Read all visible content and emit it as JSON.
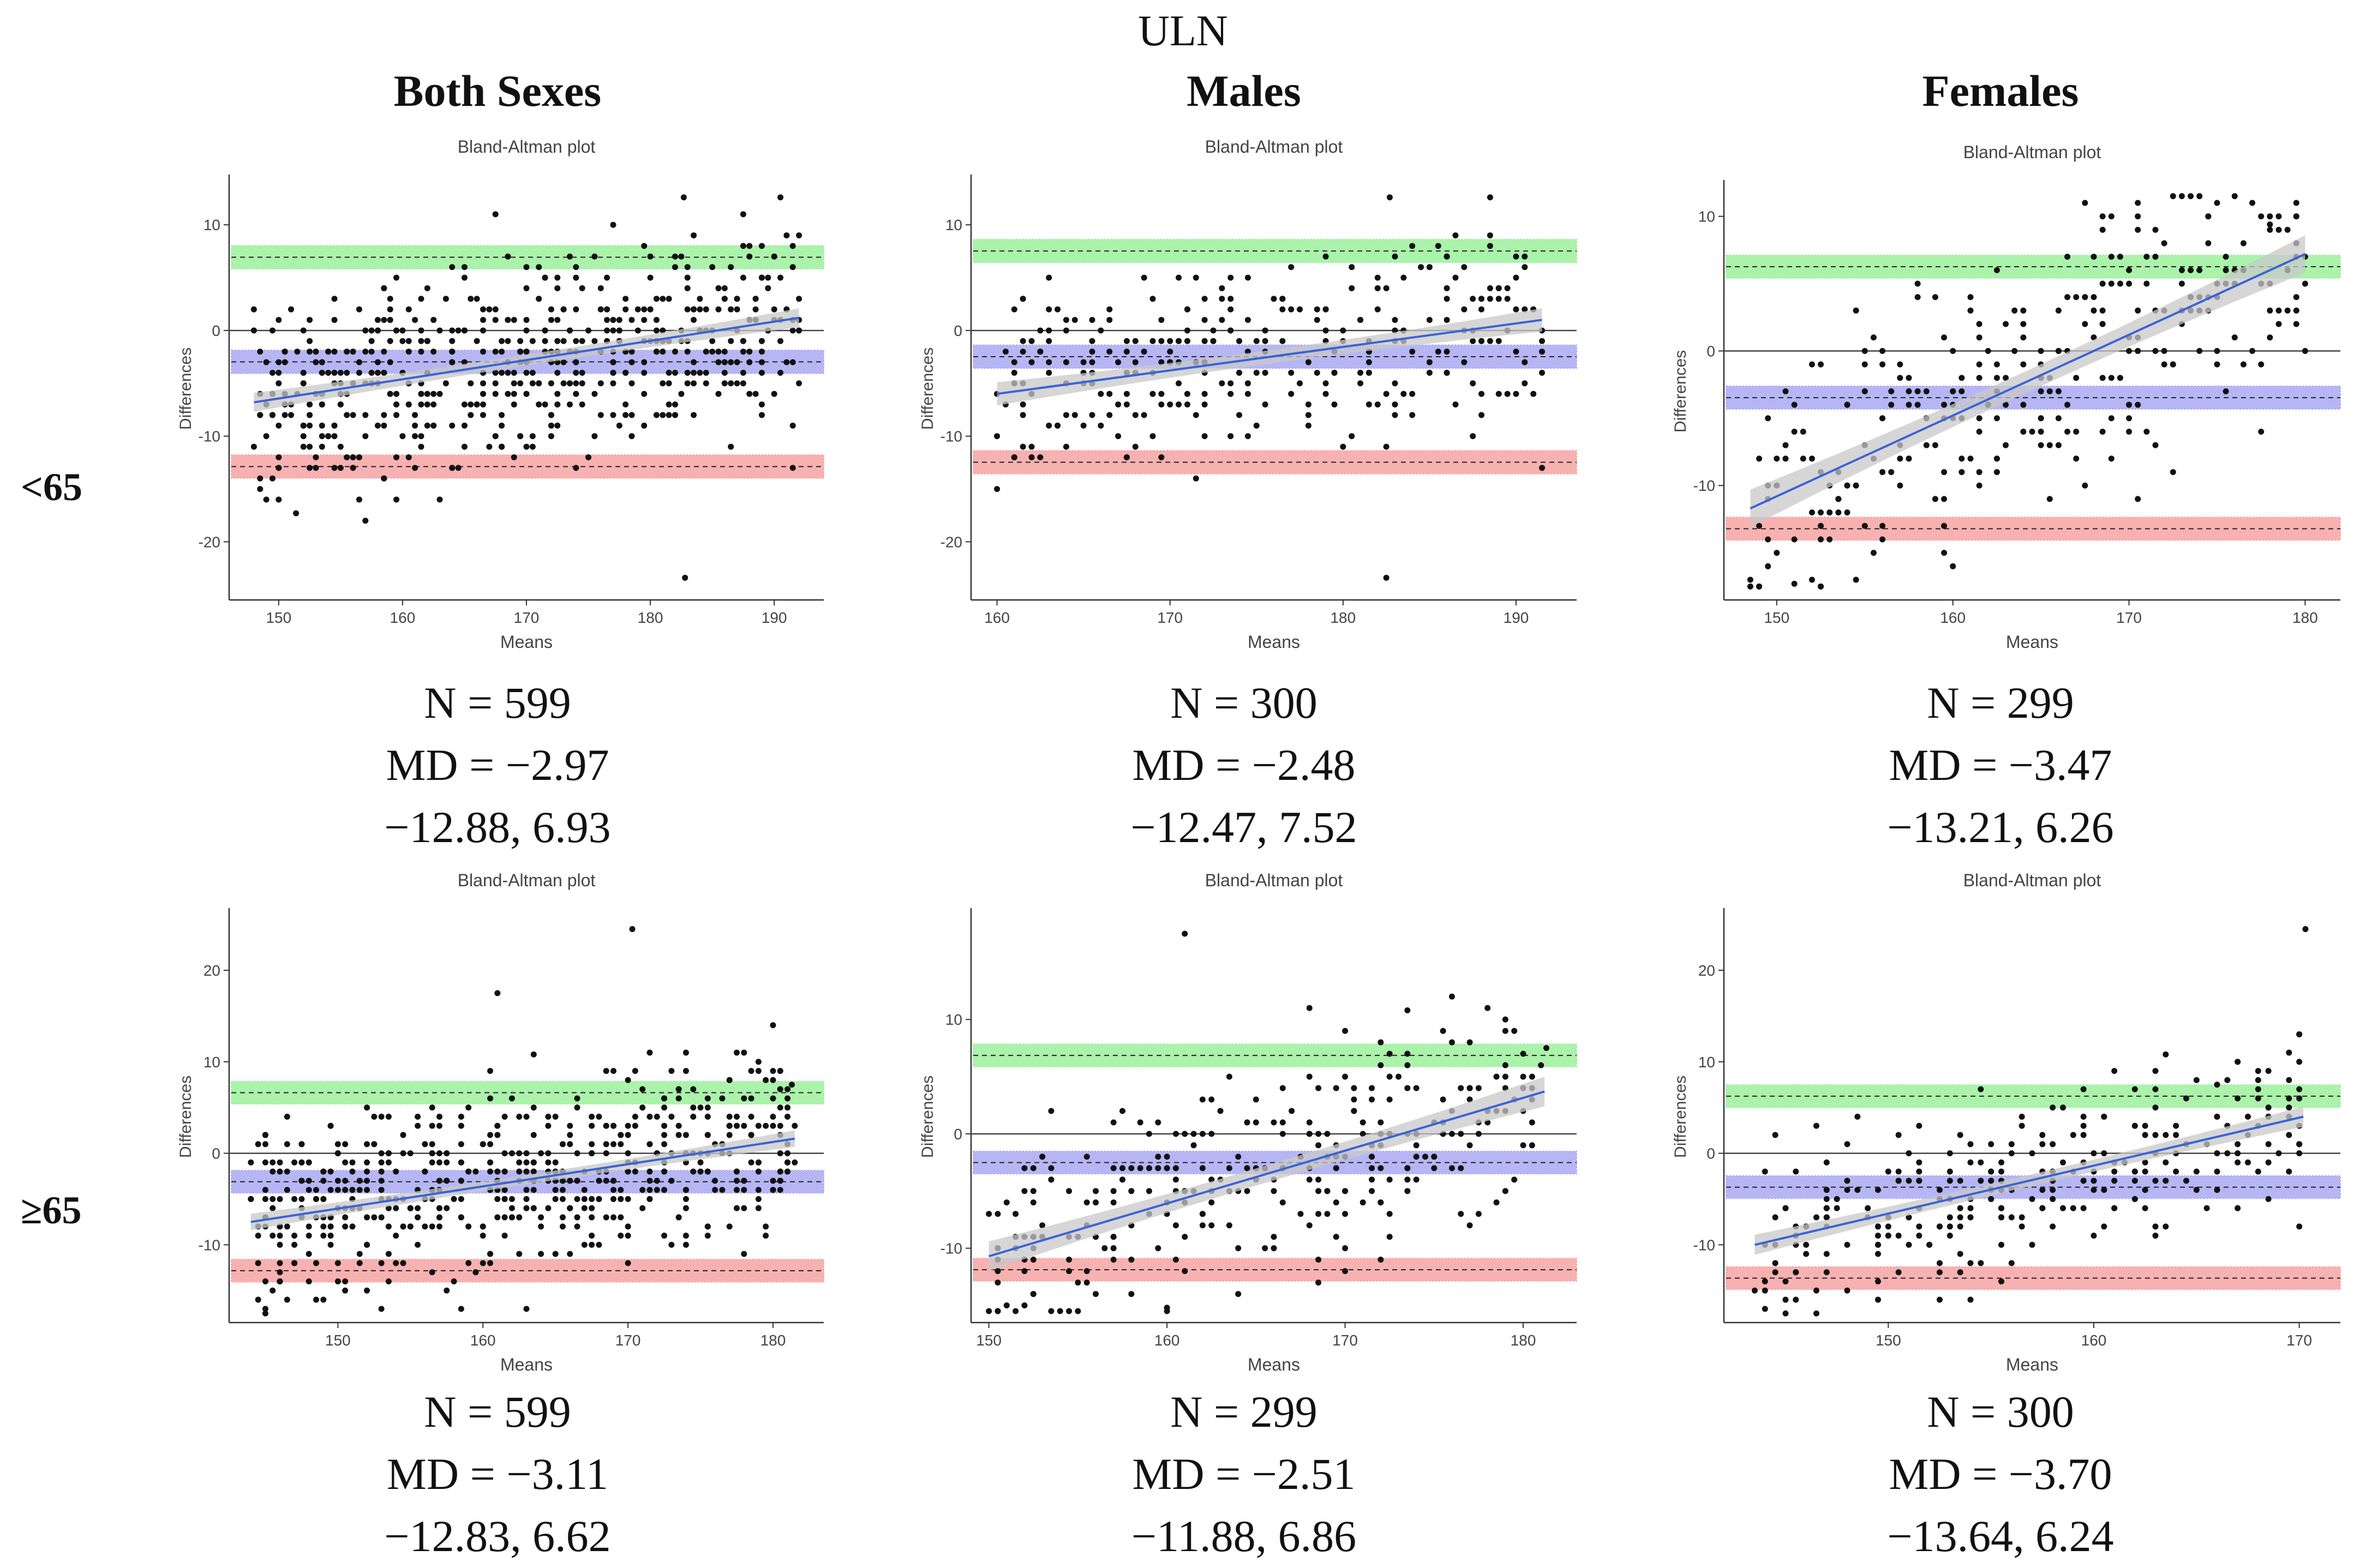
{
  "figure": {
    "title": "ULN",
    "column_headers": [
      "Both Sexes",
      "Males",
      "Females"
    ],
    "row_labels": [
      "<65",
      "≥65"
    ]
  },
  "colors": {
    "upper_loa_band": "#9cf09c",
    "mean_band": "#a9a9f2",
    "lower_loa_band": "#f6a3a3",
    "regression_line": "#3b63d8",
    "confidence_band": "#c8c8c8",
    "points": "#111111"
  },
  "stats": [
    {
      "n": "N = 599",
      "md": "MD = −2.97",
      "loa": "−12.88, 6.93"
    },
    {
      "n": "N = 300",
      "md": "MD = −2.48",
      "loa": "−12.47, 7.52"
    },
    {
      "n": "N = 299",
      "md": "MD = −3.47",
      "loa": "−13.21, 6.26"
    },
    {
      "n": "N = 599",
      "md": "MD = −3.11",
      "loa": "−12.83, 6.62"
    },
    {
      "n": "N = 299",
      "md": "MD = −2.51",
      "loa": "−11.88, 6.86"
    },
    {
      "n": "N = 300",
      "md": "MD = −3.70",
      "loa": "−13.64, 6.24"
    }
  ],
  "chart_data": [
    {
      "type": "scatter",
      "title": "Bland-Altman plot",
      "xlabel": "Means",
      "ylabel": "Differences",
      "group": "<65",
      "sex": "Both Sexes",
      "n": 599,
      "xlim": [
        146,
        194
      ],
      "ylim": [
        -25.5,
        14.5
      ],
      "xticks": [
        150,
        160,
        170,
        180,
        190
      ],
      "yticks": [
        -20,
        -10,
        0,
        10
      ],
      "mean_diff": -2.97,
      "loa_lower": -12.88,
      "loa_upper": 6.93,
      "x_range": [
        148,
        192
      ],
      "regression": {
        "x": [
          148,
          192
        ],
        "y": [
          -6.8,
          1.2
        ]
      },
      "ci_halfwidth": 0.9,
      "n_points": 599,
      "sample_points": [
        [
          182.8,
          -23.4
        ],
        [
          151.4,
          -17.3
        ],
        [
          190.5,
          12.6
        ],
        [
          167.5,
          11.0
        ],
        [
          182.7,
          12.6
        ],
        [
          191.5,
          -13.0
        ]
      ]
    },
    {
      "type": "scatter",
      "title": "Bland-Altman plot",
      "xlabel": "Means",
      "ylabel": "Differences",
      "group": "<65",
      "sex": "Males",
      "n": 300,
      "xlim": [
        158.5,
        193.5
      ],
      "ylim": [
        -25.5,
        14.5
      ],
      "xticks": [
        160,
        170,
        180,
        190
      ],
      "yticks": [
        -20,
        -10,
        0,
        10
      ],
      "mean_diff": -2.48,
      "loa_lower": -12.47,
      "loa_upper": 7.52,
      "x_range": [
        160,
        191.5
      ],
      "regression": {
        "x": [
          160,
          191.5
        ],
        "y": [
          -6.0,
          1.0
        ]
      },
      "ci_halfwidth": 1.1,
      "n_points": 300,
      "sample_points": [
        [
          182.5,
          -23.4
        ],
        [
          182.7,
          12.6
        ],
        [
          188.5,
          12.6
        ],
        [
          191.5,
          -13.0
        ]
      ]
    },
    {
      "type": "scatter",
      "title": "Bland-Altman plot",
      "xlabel": "Means",
      "ylabel": "Differences",
      "group": "<65",
      "sex": "Females",
      "n": 299,
      "xlim": [
        147,
        182
      ],
      "ylim": [
        -18.5,
        12.5
      ],
      "xticks": [
        150,
        160,
        170,
        180
      ],
      "yticks": [
        -10,
        0,
        10
      ],
      "mean_diff": -3.47,
      "loa_lower": -13.21,
      "loa_upper": 6.26,
      "x_range": [
        148.5,
        180
      ],
      "regression": {
        "x": [
          148.5,
          180
        ],
        "y": [
          -11.7,
          7.2
        ]
      },
      "ci_halfwidth": 1.4,
      "n_points": 299,
      "sample_points": [
        [
          151.0,
          -17.3
        ],
        [
          167.5,
          11.0
        ],
        [
          178.0,
          9.4
        ],
        [
          180.0,
          0.0
        ]
      ]
    },
    {
      "type": "scatter",
      "title": "Bland-Altman plot",
      "xlabel": "Means",
      "ylabel": "Differences",
      "group": "≥65",
      "sex": "Both Sexes",
      "n": 599,
      "xlim": [
        142.5,
        183.5
      ],
      "ylim": [
        -18.5,
        26.5
      ],
      "xticks": [
        150,
        160,
        170,
        180
      ],
      "yticks": [
        -10,
        0,
        10,
        20
      ],
      "mean_diff": -3.11,
      "loa_lower": -12.83,
      "loa_upper": 6.62,
      "x_range": [
        144,
        181.5
      ],
      "regression": {
        "x": [
          144,
          181.5
        ],
        "y": [
          -7.5,
          1.6
        ]
      },
      "ci_halfwidth": 0.9,
      "n_points": 599,
      "sample_points": [
        [
          170.3,
          24.5
        ],
        [
          161.0,
          17.5
        ],
        [
          163.5,
          10.8
        ],
        [
          181.3,
          7.5
        ]
      ]
    },
    {
      "type": "scatter",
      "title": "Bland-Altman plot",
      "xlabel": "Means",
      "ylabel": "Differences",
      "group": "≥65",
      "sex": "Males",
      "n": 299,
      "xlim": [
        149,
        183
      ],
      "ylim": [
        -16.5,
        19.5
      ],
      "xticks": [
        150,
        160,
        170,
        180
      ],
      "yticks": [
        -10,
        0,
        10
      ],
      "mean_diff": -2.51,
      "loa_lower": -11.88,
      "loa_upper": 6.86,
      "x_range": [
        150,
        181.2
      ],
      "regression": {
        "x": [
          150,
          181.2
        ],
        "y": [
          -10.7,
          3.7
        ]
      },
      "ci_halfwidth": 1.3,
      "n_points": 299,
      "sample_points": [
        [
          161.0,
          17.5
        ],
        [
          173.5,
          10.8
        ],
        [
          181.3,
          7.5
        ],
        [
          160.0,
          -15.2
        ]
      ]
    },
    {
      "type": "scatter",
      "title": "Bland-Altman plot",
      "xlabel": "Means",
      "ylabel": "Differences",
      "group": "≥65",
      "sex": "Females",
      "n": 300,
      "xlim": [
        142,
        172
      ],
      "ylim": [
        -18.5,
        26.5
      ],
      "xticks": [
        150,
        160,
        170
      ],
      "yticks": [
        -10,
        0,
        10,
        20
      ],
      "mean_diff": -3.7,
      "loa_lower": -13.64,
      "loa_upper": 6.24,
      "x_range": [
        143.5,
        170.2
      ],
      "regression": {
        "x": [
          143.5,
          170.2
        ],
        "y": [
          -10.0,
          4.0
        ]
      },
      "ci_halfwidth": 1.1,
      "n_points": 300,
      "sample_points": [
        [
          170.3,
          24.5
        ],
        [
          163.5,
          10.8
        ],
        [
          166.0,
          7.5
        ]
      ]
    }
  ]
}
